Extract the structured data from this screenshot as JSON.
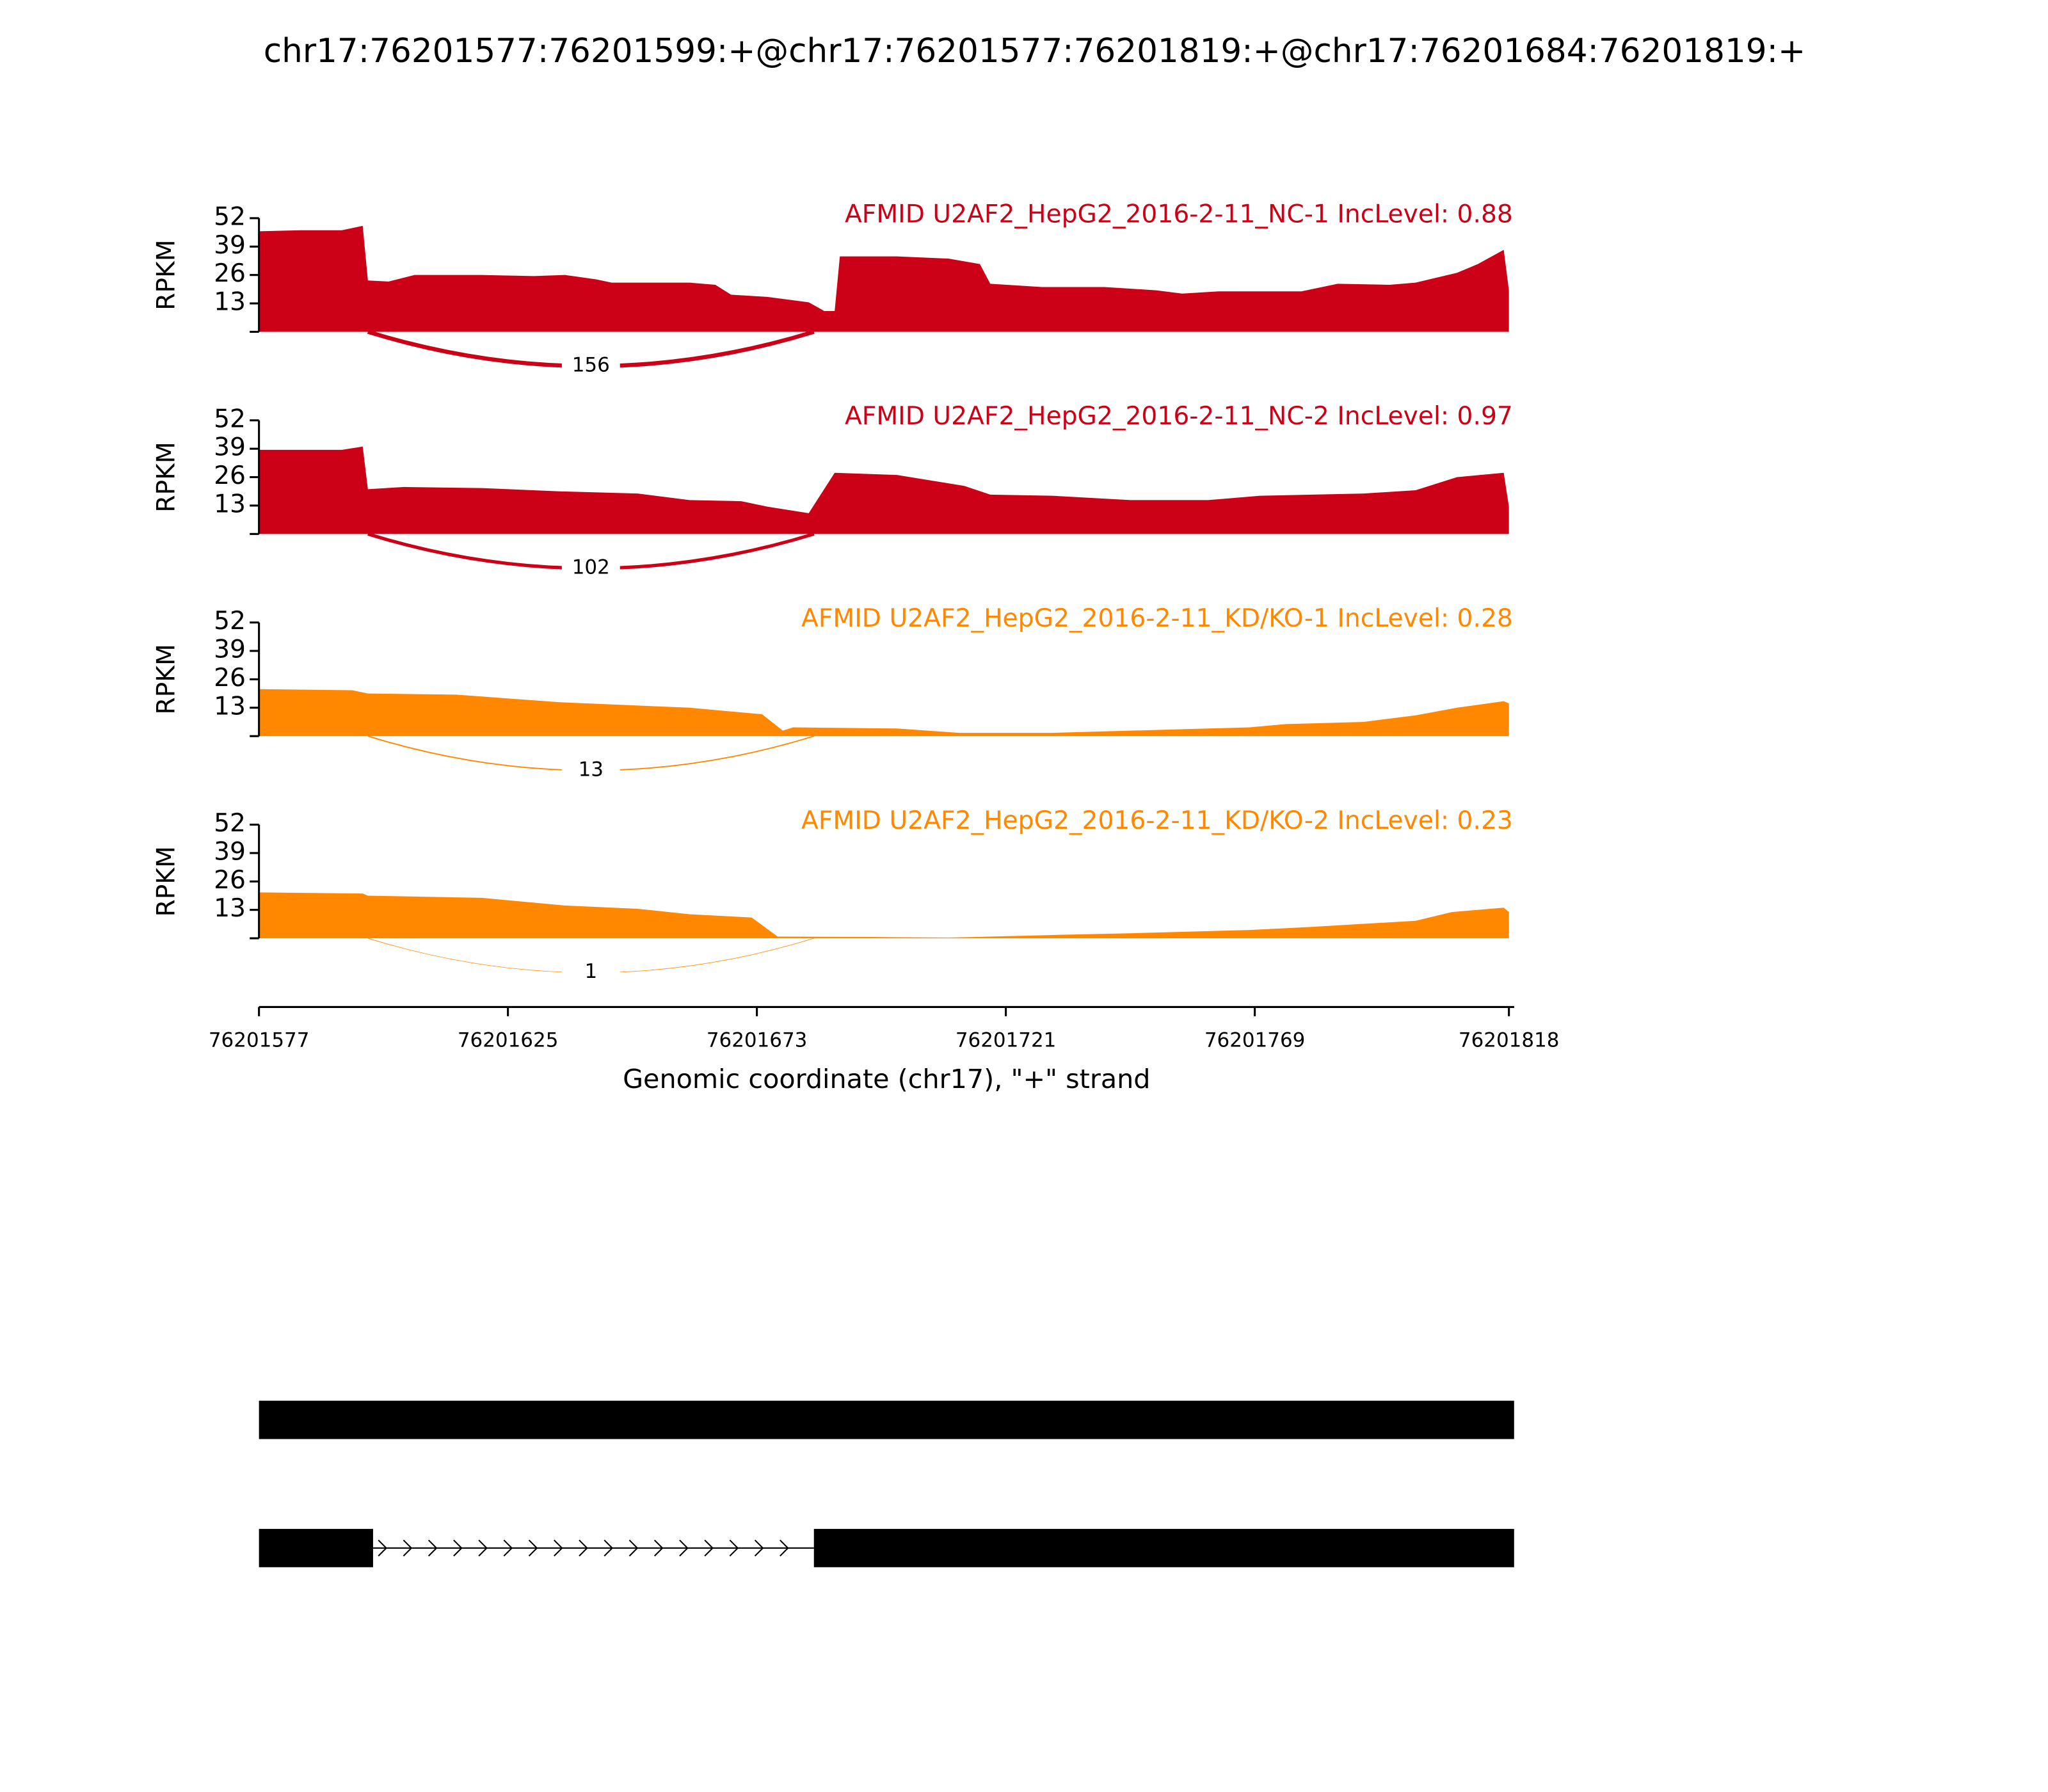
{
  "title": "chr17:76201577:76201599:+@chr17:76201577:76201819:+@chr17:76201684:76201819:+",
  "chart_data": [
    {
      "type": "area",
      "title": "AFMID U2AF2_HepG2_2016-2-11_NC-1 IncLevel: 0.88",
      "y_label": "RPKM",
      "color": "#cc0016",
      "xlim": [
        76201577,
        76201818
      ],
      "ylim": [
        0,
        52
      ],
      "yticks": [
        13,
        26,
        39,
        52
      ],
      "x": [
        76201577,
        76201585,
        76201593,
        76201597,
        76201598,
        76201602,
        76201607,
        76201620,
        76201630,
        76201636,
        76201642,
        76201645,
        76201660,
        76201665,
        76201668,
        76201675,
        76201683,
        76201686,
        76201688,
        76201689,
        76201700,
        76201710,
        76201716,
        76201718,
        76201728,
        76201740,
        76201750,
        76201755,
        76201762,
        76201770,
        76201778,
        76201785,
        76201795,
        76201800,
        76201808,
        76201812,
        76201817,
        76201818
      ],
      "values": [
        46,
        46.5,
        46.5,
        48.5,
        23.5,
        23,
        26,
        26,
        25.5,
        26,
        24,
        22.5,
        22.5,
        21.5,
        17,
        16,
        13.5,
        9.5,
        9.5,
        34.5,
        34.5,
        33.5,
        31,
        22,
        20.5,
        20.5,
        19,
        17.5,
        18.5,
        18.5,
        18.5,
        22,
        21.5,
        22.5,
        27,
        31,
        37.5,
        19
      ],
      "junctions": [
        {
          "start": 76201599,
          "end": 76201684,
          "count": 156
        }
      ]
    },
    {
      "type": "area",
      "title": "AFMID U2AF2_HepG2_2016-2-11_NC-2 IncLevel: 0.97",
      "y_label": "RPKM",
      "color": "#cc0016",
      "xlim": [
        76201577,
        76201818
      ],
      "ylim": [
        0,
        52
      ],
      "yticks": [
        13,
        26,
        39,
        52
      ],
      "x": [
        76201577,
        76201593,
        76201597,
        76201598,
        76201605,
        76201620,
        76201635,
        76201650,
        76201660,
        76201670,
        76201675,
        76201683,
        76201688,
        76201700,
        76201713,
        76201718,
        76201730,
        76201745,
        76201760,
        76201770,
        76201790,
        76201800,
        76201808,
        76201817,
        76201818
      ],
      "values": [
        38.5,
        38.5,
        40,
        20.5,
        21.5,
        21,
        19.5,
        18.5,
        15.5,
        15,
        12.5,
        9.5,
        28,
        27,
        22,
        18,
        17.5,
        15.5,
        15.5,
        17.5,
        18.5,
        20,
        26,
        28,
        12.5
      ],
      "junctions": [
        {
          "start": 76201599,
          "end": 76201684,
          "count": 102
        }
      ]
    },
    {
      "type": "area",
      "title": "AFMID U2AF2_HepG2_2016-2-11_KD/KO-1 IncLevel: 0.28",
      "y_label": "RPKM",
      "color": "#ff8800",
      "xlim": [
        76201577,
        76201818
      ],
      "ylim": [
        0,
        52
      ],
      "yticks": [
        13,
        26,
        39,
        52
      ],
      "x": [
        76201577,
        76201595,
        76201598,
        76201615,
        76201635,
        76201650,
        76201660,
        76201674,
        76201678,
        76201680,
        76201700,
        76201712,
        76201730,
        76201745,
        76201768,
        76201775,
        76201790,
        76201800,
        76201808,
        76201817,
        76201818
      ],
      "values": [
        21.5,
        21,
        19.5,
        19,
        15.5,
        14,
        13,
        10,
        2.5,
        4,
        3.5,
        1.5,
        1.5,
        2.5,
        4,
        5.5,
        6.5,
        9.5,
        13,
        16,
        15
      ],
      "junctions": [
        {
          "start": 76201599,
          "end": 76201684,
          "count": 13
        }
      ]
    },
    {
      "type": "area",
      "title": "AFMID U2AF2_HepG2_2016-2-11_KD/KO-2 IncLevel: 0.23",
      "y_label": "RPKM",
      "color": "#ff8800",
      "xlim": [
        76201577,
        76201818
      ],
      "ylim": [
        0,
        52
      ],
      "yticks": [
        13,
        26,
        39,
        52
      ],
      "x": [
        76201577,
        76201597,
        76201598,
        76201620,
        76201636,
        76201650,
        76201660,
        76201672,
        76201677,
        76201695,
        76201710,
        76201730,
        76201745,
        76201768,
        76201780,
        76201800,
        76201807,
        76201817,
        76201818
      ],
      "values": [
        21,
        20.5,
        19.5,
        18.5,
        15,
        13.5,
        11,
        9.5,
        0.8,
        0.6,
        0.3,
        1.5,
        2.3,
        3.8,
        5.2,
        8,
        12,
        14,
        12
      ],
      "junctions": [
        {
          "start": 76201599,
          "end": 76201684,
          "count": 1
        }
      ],
      "xticks": [
        76201577,
        76201625,
        76201673,
        76201721,
        76201769,
        76201818
      ],
      "x_label": "Genomic coordinate (chr17), \"+\" strand"
    }
  ],
  "transcripts": [
    {
      "exons": [
        [
          76201577,
          76201819
        ]
      ]
    },
    {
      "exons": [
        [
          76201577,
          76201599
        ],
        [
          76201684,
          76201819
        ]
      ]
    }
  ]
}
